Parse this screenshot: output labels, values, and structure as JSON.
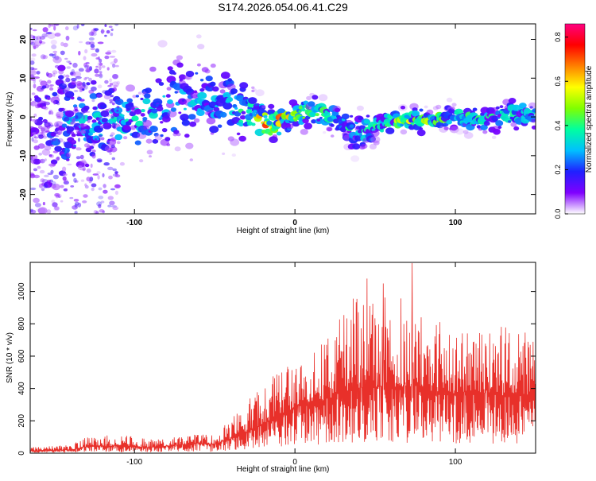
{
  "figure_title": "S174.2026.054.06.41.C29",
  "chart_data": [
    {
      "type": "heatmap",
      "title": "",
      "xlabel": "Height of straight line (km)",
      "ylabel": "Frequency (Hz)",
      "xlim": [
        -165,
        150
      ],
      "ylim": [
        -25,
        24
      ],
      "x_ticks": [
        -100,
        0,
        100
      ],
      "x_tick_labels": [
        "-100",
        "0",
        "100"
      ],
      "y_ticks": [
        -20,
        -10,
        0,
        10,
        20
      ],
      "y_tick_labels": [
        "-20",
        "-10",
        "0",
        "10",
        "20"
      ],
      "colorbar": {
        "label": "Normalized spectral amplitude",
        "range": [
          0.0,
          0.86
        ],
        "ticks": [
          0.0,
          0.2,
          0.4,
          0.6,
          0.8
        ],
        "tick_labels": [
          "0.0",
          "0.2",
          "0.4",
          "0.6",
          "0.8"
        ],
        "colormap_stops": [
          "#ffffff",
          "#8000ff",
          "#2020ff",
          "#00c0ff",
          "#00ffa0",
          "#80ff00",
          "#ffff00",
          "#ff8000",
          "#ff0000",
          "#ff0080"
        ]
      },
      "ridge_profile": [
        {
          "x": -165,
          "center": 0,
          "spread": 14,
          "amp": 0.1
        },
        {
          "x": -140,
          "center": -2,
          "spread": 6,
          "amp": 0.3
        },
        {
          "x": -120,
          "center": -1,
          "spread": 4,
          "amp": 0.35
        },
        {
          "x": -100,
          "center": -1,
          "spread": 4,
          "amp": 0.35
        },
        {
          "x": -80,
          "center": 3,
          "spread": 5,
          "amp": 0.3
        },
        {
          "x": -60,
          "center": 4,
          "spread": 5,
          "amp": 0.3
        },
        {
          "x": -40,
          "center": 3,
          "spread": 4,
          "amp": 0.3
        },
        {
          "x": -25,
          "center": 0,
          "spread": 2,
          "amp": 0.55
        },
        {
          "x": -15,
          "center": -2,
          "spread": 1.5,
          "amp": 0.8
        },
        {
          "x": -5,
          "center": 0,
          "spread": 1.5,
          "amp": 0.6
        },
        {
          "x": 15,
          "center": 1.5,
          "spread": 1.5,
          "amp": 0.45
        },
        {
          "x": 40,
          "center": -4,
          "spread": 2,
          "amp": 0.35
        },
        {
          "x": 60,
          "center": -1,
          "spread": 1.2,
          "amp": 0.5
        },
        {
          "x": 80,
          "center": -1,
          "spread": 1.2,
          "amp": 0.55
        },
        {
          "x": 100,
          "center": 0,
          "spread": 1.2,
          "amp": 0.45
        },
        {
          "x": 120,
          "center": -1,
          "spread": 1.2,
          "amp": 0.45
        },
        {
          "x": 140,
          "center": 1,
          "spread": 1.5,
          "amp": 0.4
        },
        {
          "x": 150,
          "center": 0,
          "spread": 1.5,
          "amp": 0.35
        }
      ]
    },
    {
      "type": "line",
      "title": "",
      "xlabel": "Height of straight line (km)",
      "ylabel": "SNR (10 * v/v)",
      "xlim": [
        -165,
        150
      ],
      "ylim": [
        0,
        1180
      ],
      "x_ticks": [
        -100,
        0,
        100
      ],
      "x_tick_labels": [
        "-100",
        "0",
        "100"
      ],
      "y_ticks": [
        0,
        200,
        400,
        600,
        800,
        1000
      ],
      "y_tick_labels": [
        "0",
        "200",
        "400",
        "600",
        "800",
        "1000"
      ],
      "series": [
        {
          "name": "SNR",
          "color": "#e8302a",
          "envelope": [
            {
              "x": -165,
              "base": 15,
              "peak": 40
            },
            {
              "x": -140,
              "base": 20,
              "peak": 50
            },
            {
              "x": -130,
              "base": 40,
              "peak": 100
            },
            {
              "x": -110,
              "base": 45,
              "peak": 120
            },
            {
              "x": -90,
              "base": 35,
              "peak": 90
            },
            {
              "x": -75,
              "base": 50,
              "peak": 100
            },
            {
              "x": -60,
              "base": 60,
              "peak": 120
            },
            {
              "x": -50,
              "base": 55,
              "peak": 110
            },
            {
              "x": -40,
              "base": 90,
              "peak": 220
            },
            {
              "x": -30,
              "base": 130,
              "peak": 320
            },
            {
              "x": -20,
              "base": 180,
              "peak": 420
            },
            {
              "x": -10,
              "base": 240,
              "peak": 520
            },
            {
              "x": 0,
              "base": 280,
              "peak": 560
            },
            {
              "x": 10,
              "base": 320,
              "peak": 600
            },
            {
              "x": 20,
              "base": 330,
              "peak": 720
            },
            {
              "x": 30,
              "base": 380,
              "peak": 880
            },
            {
              "x": 40,
              "base": 400,
              "peak": 1040
            },
            {
              "x": 50,
              "base": 410,
              "peak": 1030
            },
            {
              "x": 60,
              "base": 400,
              "peak": 940
            },
            {
              "x": 70,
              "base": 410,
              "peak": 1000
            },
            {
              "x": 80,
              "base": 390,
              "peak": 880
            },
            {
              "x": 90,
              "base": 380,
              "peak": 820
            },
            {
              "x": 100,
              "base": 370,
              "peak": 740
            },
            {
              "x": 110,
              "base": 380,
              "peak": 780
            },
            {
              "x": 120,
              "base": 370,
              "peak": 760
            },
            {
              "x": 130,
              "base": 350,
              "peak": 800
            },
            {
              "x": 140,
              "base": 360,
              "peak": 760
            },
            {
              "x": 150,
              "base": 360,
              "peak": 720
            }
          ],
          "notable_peaks": [
            {
              "x": 45,
              "y": 1080
            },
            {
              "x": 73,
              "y": 1175
            },
            {
              "x": 55,
              "y": 1050
            }
          ]
        }
      ]
    }
  ]
}
